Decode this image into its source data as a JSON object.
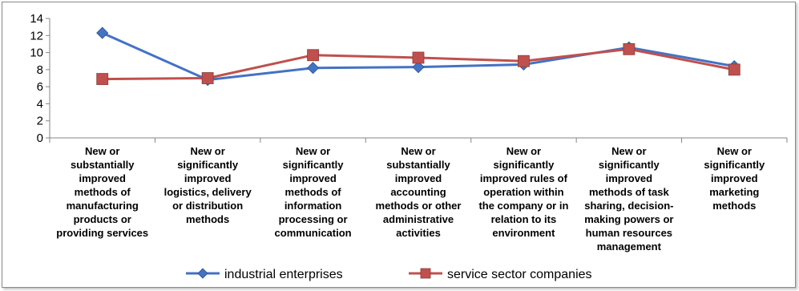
{
  "chart_data": {
    "type": "line",
    "title": "",
    "xlabel": "",
    "ylabel": "",
    "ylim": [
      0,
      14
    ],
    "yticks": [
      0,
      2,
      4,
      6,
      8,
      10,
      12,
      14
    ],
    "grid": false,
    "legend_position": "bottom",
    "categories": [
      [
        "New or",
        "substantially",
        "improved",
        "methods of",
        "manufacturing",
        "products or",
        "providing services"
      ],
      [
        "New or",
        "significantly",
        "improved",
        "logistics, delivery",
        "or distribution",
        "methods"
      ],
      [
        "New or",
        "significantly",
        "improved",
        "methods of",
        "information",
        "processing or",
        "communication"
      ],
      [
        "New or",
        "substantially",
        "improved",
        "accounting",
        "methods or other",
        "administrative",
        "activities"
      ],
      [
        "New or",
        "significantly",
        "improved rules of",
        "operation within",
        "the company or in",
        "relation to its",
        "environment"
      ],
      [
        "New or",
        "significantly",
        "improved",
        "methods of task",
        "sharing, decision-",
        "making powers or",
        "human resources",
        "management"
      ],
      [
        "New or",
        "significantly",
        "improved",
        "marketing",
        "methods"
      ]
    ],
    "series": [
      {
        "name": "industrial enterprises",
        "color": "#4472c4",
        "marker": "diamond",
        "values": [
          12.3,
          6.8,
          8.2,
          8.3,
          8.6,
          10.6,
          8.4
        ]
      },
      {
        "name": "service sector companies",
        "color": "#c0504d",
        "marker": "square",
        "values": [
          6.9,
          7.0,
          9.7,
          9.4,
          9.0,
          10.4,
          8.0
        ]
      }
    ]
  }
}
